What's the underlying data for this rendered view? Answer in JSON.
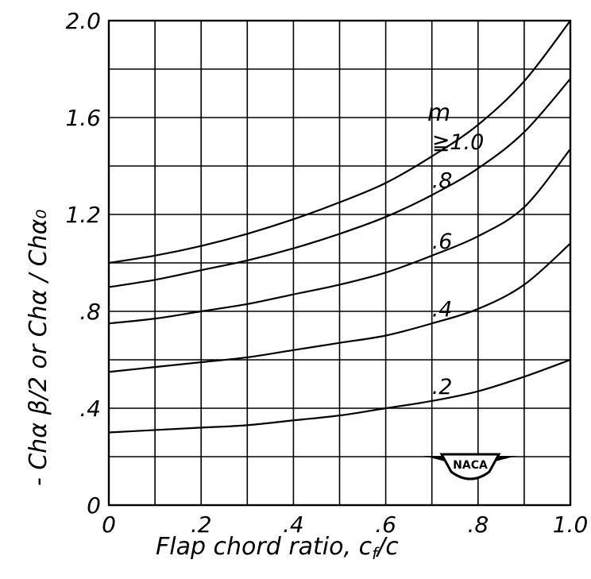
{
  "chart_data": {
    "type": "line",
    "xlabel": "Flap chord ratio, c",
    "xlabel_subscript": "f",
    "xlabel_suffix": "/c",
    "ylabel": "- Chα β/2 or Chα / Chα₀",
    "xlim": [
      0,
      1.0
    ],
    "ylim": [
      0,
      2.0
    ],
    "x_ticks": [
      0,
      0.1,
      0.2,
      0.3,
      0.4,
      0.5,
      0.6,
      0.7,
      0.8,
      0.9,
      1.0
    ],
    "y_ticks": [
      0,
      0.2,
      0.4,
      0.6,
      0.8,
      1.0,
      1.2,
      1.4,
      1.6,
      1.8,
      2.0
    ],
    "x_tick_labels": [
      "0",
      ".2",
      ".4",
      ".6",
      ".8",
      "1.0"
    ],
    "x_tick_label_values": [
      0,
      0.2,
      0.4,
      0.6,
      0.8,
      1.0
    ],
    "y_tick_labels": [
      "0",
      ".4",
      ".8",
      "1.2",
      "1.6",
      "2.0"
    ],
    "y_tick_label_values": [
      0,
      0.4,
      0.8,
      1.2,
      1.6,
      2.0
    ],
    "grid": true,
    "legend_title": "m",
    "curve_label_x": 0.7,
    "series": [
      {
        "name": "≧1.0",
        "x": [
          0,
          0.1,
          0.2,
          0.3,
          0.4,
          0.5,
          0.6,
          0.7,
          0.8,
          0.9,
          1.0
        ],
        "y": [
          1.0,
          1.03,
          1.07,
          1.12,
          1.18,
          1.25,
          1.33,
          1.44,
          1.57,
          1.75,
          2.0
        ]
      },
      {
        "name": ".8",
        "x": [
          0,
          0.1,
          0.2,
          0.3,
          0.4,
          0.5,
          0.6,
          0.7,
          0.8,
          0.9,
          1.0
        ],
        "y": [
          0.9,
          0.93,
          0.97,
          1.01,
          1.06,
          1.12,
          1.19,
          1.28,
          1.39,
          1.54,
          1.76
        ]
      },
      {
        "name": ".6",
        "x": [
          0,
          0.1,
          0.2,
          0.3,
          0.4,
          0.5,
          0.6,
          0.7,
          0.8,
          0.9,
          1.0
        ],
        "y": [
          0.75,
          0.77,
          0.8,
          0.83,
          0.87,
          0.91,
          0.96,
          1.03,
          1.11,
          1.23,
          1.47
        ]
      },
      {
        "name": ".4",
        "x": [
          0,
          0.1,
          0.2,
          0.3,
          0.4,
          0.5,
          0.6,
          0.7,
          0.8,
          0.9,
          1.0
        ],
        "y": [
          0.55,
          0.57,
          0.59,
          0.61,
          0.64,
          0.67,
          0.7,
          0.75,
          0.81,
          0.91,
          1.08
        ]
      },
      {
        "name": ".2",
        "x": [
          0,
          0.1,
          0.2,
          0.3,
          0.4,
          0.5,
          0.6,
          0.7,
          0.8,
          0.9,
          1.0
        ],
        "y": [
          0.3,
          0.31,
          0.32,
          0.33,
          0.35,
          0.37,
          0.4,
          0.43,
          0.47,
          0.53,
          0.6
        ]
      }
    ]
  },
  "logo": {
    "text": "NACA"
  }
}
